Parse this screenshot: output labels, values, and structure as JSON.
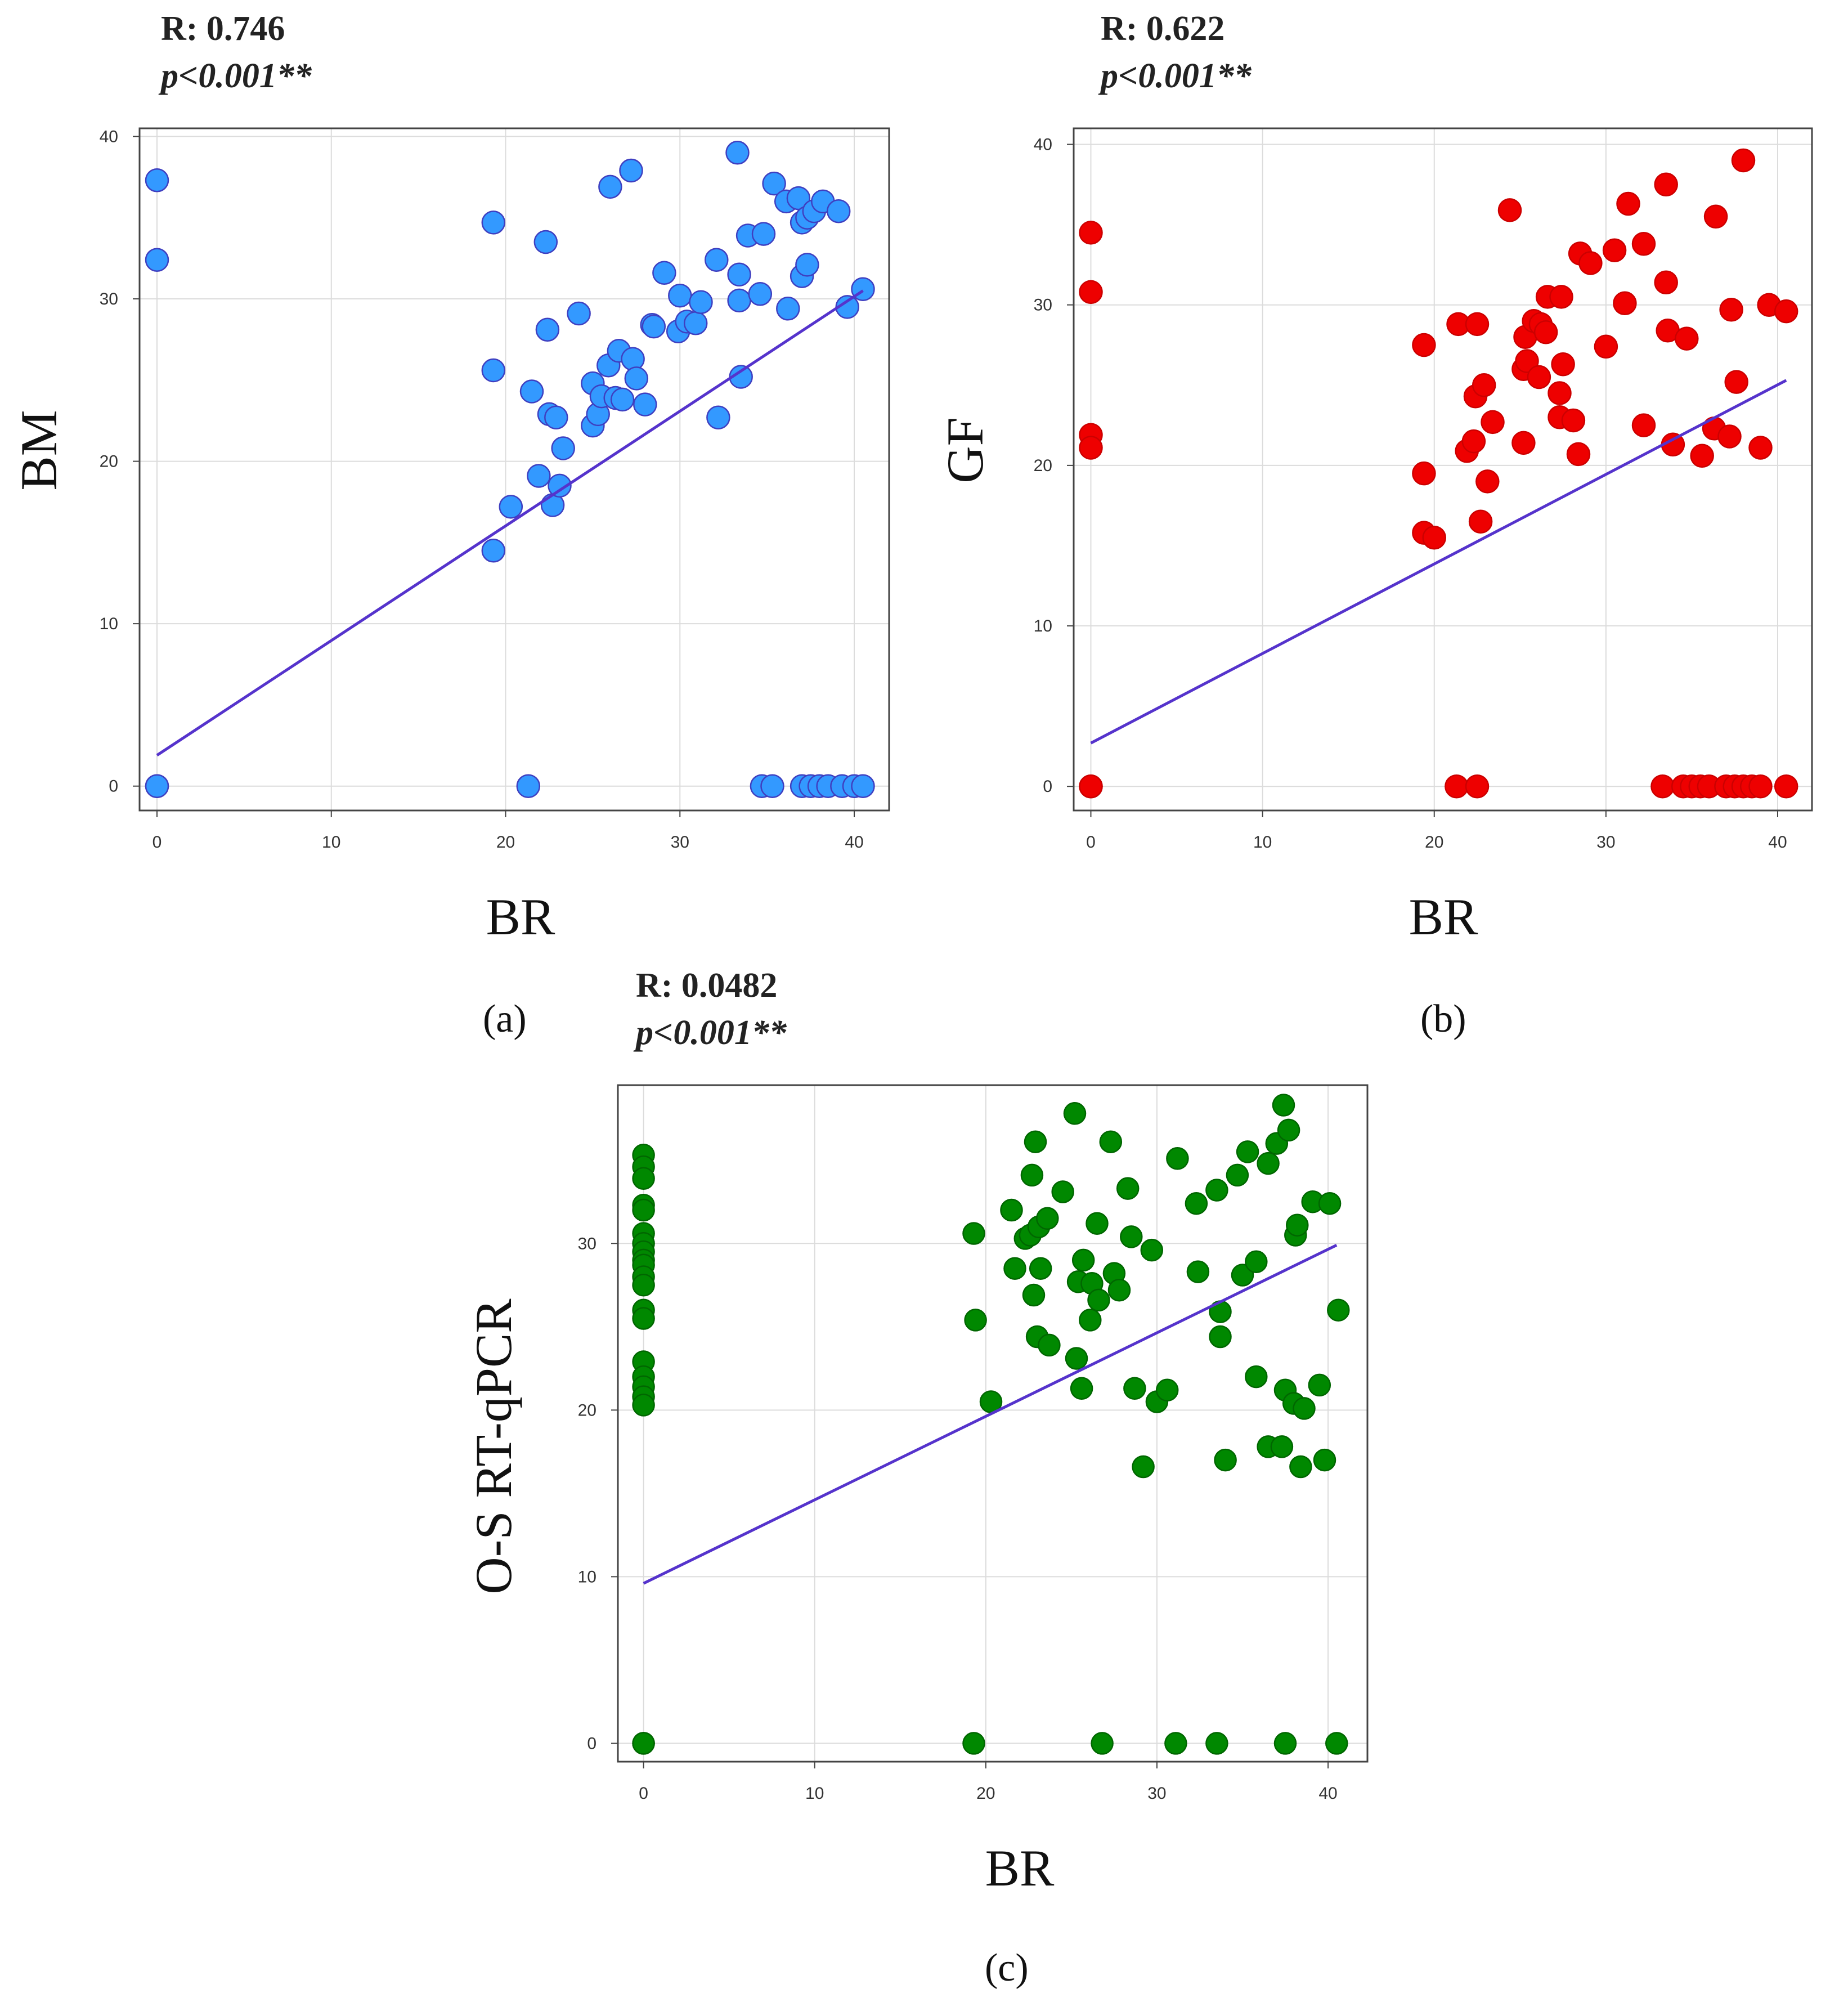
{
  "chart_data": [
    {
      "id": "a",
      "type": "scatter",
      "panel_label": "(a)",
      "stat_r": "R: 0.746",
      "stat_p": "p<0.001**",
      "xlabel": "BR",
      "ylabel": "BM",
      "xlim": [
        -1,
        42
      ],
      "ylim": [
        -1.5,
        40.5
      ],
      "xticks": [
        0,
        10,
        20,
        30,
        40
      ],
      "yticks": [
        0,
        10,
        20,
        30,
        40
      ],
      "grid": true,
      "marker_color": "#3399FF",
      "marker_edge": "#3F3FC0",
      "line_color": "#5533CC",
      "fit_line": {
        "x": [
          0,
          40.5
        ],
        "y": [
          1.9,
          30.5
        ]
      },
      "points": [
        [
          0,
          37.3
        ],
        [
          0,
          32.4
        ],
        [
          0,
          0
        ],
        [
          0,
          0
        ],
        [
          19.3,
          34.7
        ],
        [
          19.3,
          25.6
        ],
        [
          19.3,
          14.5
        ],
        [
          20.3,
          17.2
        ],
        [
          21.3,
          0
        ],
        [
          21.5,
          24.3
        ],
        [
          21.9,
          19.1
        ],
        [
          22.3,
          33.5
        ],
        [
          22.4,
          28.1
        ],
        [
          22.5,
          22.9
        ],
        [
          22.7,
          17.3
        ],
        [
          22.9,
          22.7
        ],
        [
          23.1,
          18.5
        ],
        [
          23.3,
          20.8
        ],
        [
          24.2,
          29.1
        ],
        [
          25.0,
          24.8
        ],
        [
          25.0,
          22.2
        ],
        [
          25.3,
          22.9
        ],
        [
          25.5,
          24.0
        ],
        [
          25.9,
          25.9
        ],
        [
          26.0,
          36.9
        ],
        [
          26.3,
          23.9
        ],
        [
          26.5,
          26.8
        ],
        [
          26.7,
          23.8
        ],
        [
          27.2,
          37.9
        ],
        [
          27.3,
          26.3
        ],
        [
          27.5,
          25.1
        ],
        [
          28.0,
          23.5
        ],
        [
          28.4,
          28.4
        ],
        [
          28.5,
          28.3
        ],
        [
          29.1,
          31.6
        ],
        [
          29.9,
          28.0
        ],
        [
          30.0,
          30.2
        ],
        [
          30.4,
          28.6
        ],
        [
          30.9,
          28.5
        ],
        [
          31.2,
          29.8
        ],
        [
          32.1,
          32.4
        ],
        [
          32.2,
          22.7
        ],
        [
          33.3,
          39.0
        ],
        [
          33.4,
          31.5
        ],
        [
          33.4,
          29.9
        ],
        [
          33.5,
          25.2
        ],
        [
          33.9,
          33.9
        ],
        [
          34.8,
          34.0
        ],
        [
          34.6,
          30.3
        ],
        [
          34.7,
          0
        ],
        [
          35.3,
          0
        ],
        [
          35.4,
          37.1
        ],
        [
          36.1,
          36.0
        ],
        [
          36.2,
          29.4
        ],
        [
          36.8,
          36.2
        ],
        [
          37.0,
          31.4
        ],
        [
          37.0,
          34.7
        ],
        [
          37.3,
          32.1
        ],
        [
          37.3,
          35.0
        ],
        [
          37.7,
          35.4
        ],
        [
          37.0,
          0
        ],
        [
          37.5,
          0
        ],
        [
          38.0,
          0
        ],
        [
          38.2,
          36.0
        ],
        [
          38.5,
          0
        ],
        [
          39.1,
          35.4
        ],
        [
          39.3,
          0
        ],
        [
          39.6,
          29.5
        ],
        [
          40.0,
          0
        ],
        [
          40.5,
          0
        ],
        [
          40.5,
          30.6
        ]
      ]
    },
    {
      "id": "b",
      "type": "scatter",
      "panel_label": "(b)",
      "stat_r": "R: 0.622",
      "stat_p": "p<0.001**",
      "xlabel": "BR",
      "ylabel": "GF",
      "xlim": [
        -1,
        42
      ],
      "ylim": [
        -1.5,
        41
      ],
      "xticks": [
        0,
        10,
        20,
        30,
        40
      ],
      "yticks": [
        0,
        10,
        20,
        30,
        40
      ],
      "grid": true,
      "marker_color": "#EE0000",
      "marker_edge": "#CC0000",
      "line_color": "#5533CC",
      "fit_line": {
        "x": [
          0,
          40.5
        ],
        "y": [
          2.7,
          25.3
        ]
      },
      "points": [
        [
          0,
          34.5
        ],
        [
          0,
          30.8
        ],
        [
          0,
          21.9
        ],
        [
          0,
          21.1
        ],
        [
          0,
          0
        ],
        [
          0,
          0
        ],
        [
          19.4,
          27.5
        ],
        [
          19.4,
          19.5
        ],
        [
          19.4,
          15.8
        ],
        [
          20.0,
          15.5
        ],
        [
          21.3,
          0
        ],
        [
          22.5,
          0
        ],
        [
          21.4,
          28.8
        ],
        [
          21.9,
          20.9
        ],
        [
          22.3,
          21.5
        ],
        [
          22.4,
          24.3
        ],
        [
          22.5,
          28.8
        ],
        [
          22.7,
          16.5
        ],
        [
          22.9,
          25.0
        ],
        [
          23.1,
          19.0
        ],
        [
          23.4,
          22.7
        ],
        [
          24.4,
          35.9
        ],
        [
          25.2,
          21.4
        ],
        [
          25.2,
          26.0
        ],
        [
          25.3,
          28.0
        ],
        [
          25.4,
          26.5
        ],
        [
          25.8,
          29.0
        ],
        [
          26.1,
          25.5
        ],
        [
          26.2,
          28.8
        ],
        [
          26.5,
          28.3
        ],
        [
          26.6,
          30.5
        ],
        [
          27.3,
          24.5
        ],
        [
          27.3,
          23.0
        ],
        [
          27.4,
          30.5
        ],
        [
          27.5,
          26.3
        ],
        [
          28.1,
          22.8
        ],
        [
          28.4,
          20.7
        ],
        [
          28.5,
          33.2
        ],
        [
          29.1,
          32.6
        ],
        [
          30.0,
          27.4
        ],
        [
          30.5,
          33.4
        ],
        [
          31.1,
          30.1
        ],
        [
          31.3,
          36.3
        ],
        [
          32.2,
          33.8
        ],
        [
          32.2,
          22.5
        ],
        [
          33.3,
          0
        ],
        [
          33.5,
          37.5
        ],
        [
          33.5,
          31.4
        ],
        [
          33.6,
          28.4
        ],
        [
          33.9,
          21.3
        ],
        [
          34.5,
          0
        ],
        [
          34.7,
          27.9
        ],
        [
          35.0,
          0
        ],
        [
          35.5,
          0
        ],
        [
          35.6,
          20.6
        ],
        [
          36.0,
          0
        ],
        [
          36.3,
          22.3
        ],
        [
          36.4,
          35.5
        ],
        [
          37.0,
          0
        ],
        [
          37.2,
          21.8
        ],
        [
          37.3,
          29.7
        ],
        [
          37.5,
          0
        ],
        [
          37.6,
          25.2
        ],
        [
          38.0,
          0
        ],
        [
          38.0,
          39.0
        ],
        [
          38.5,
          0
        ],
        [
          39.0,
          21.1
        ],
        [
          39.0,
          0
        ],
        [
          39.5,
          30.0
        ],
        [
          40.5,
          29.6
        ],
        [
          40.5,
          0
        ]
      ]
    },
    {
      "id": "c",
      "type": "scatter",
      "panel_label": "(c)",
      "stat_r": "R: 0.0482",
      "stat_p": "p<0.001**",
      "xlabel": "BR",
      "ylabel": "O-S RT-qPCR",
      "xlim": [
        -1.5,
        42.3
      ],
      "ylim": [
        -1.1,
        39.5
      ],
      "xticks": [
        0,
        10,
        20,
        30,
        40
      ],
      "yticks": [
        0,
        10,
        20,
        30
      ],
      "grid": true,
      "marker_color": "#008800",
      "marker_edge": "#006600",
      "line_color": "#5533CC",
      "fit_line": {
        "x": [
          0,
          40.5
        ],
        "y": [
          9.6,
          29.9
        ]
      },
      "points": [
        [
          0,
          35.3
        ],
        [
          0,
          34.6
        ],
        [
          0,
          33.9
        ],
        [
          0,
          32.3
        ],
        [
          0,
          32.0
        ],
        [
          0,
          30.6
        ],
        [
          0,
          30.0
        ],
        [
          0,
          29.5
        ],
        [
          0,
          29.0
        ],
        [
          0,
          28.7
        ],
        [
          0,
          28.0
        ],
        [
          0,
          27.5
        ],
        [
          0,
          26.0
        ],
        [
          0,
          25.5
        ],
        [
          0,
          22.9
        ],
        [
          0,
          22.0
        ],
        [
          0,
          21.4
        ],
        [
          0,
          20.8
        ],
        [
          0,
          20.3
        ],
        [
          0,
          0
        ],
        [
          0,
          0
        ],
        [
          19.3,
          30.6
        ],
        [
          19.4,
          25.4
        ],
        [
          19.3,
          0
        ],
        [
          20.3,
          20.5
        ],
        [
          21.5,
          32.0
        ],
        [
          21.7,
          28.5
        ],
        [
          22.3,
          30.3
        ],
        [
          22.6,
          30.5
        ],
        [
          22.7,
          34.1
        ],
        [
          22.8,
          26.9
        ],
        [
          22.9,
          36.1
        ],
        [
          23.0,
          24.4
        ],
        [
          23.1,
          31.0
        ],
        [
          23.2,
          28.5
        ],
        [
          23.6,
          31.5
        ],
        [
          23.7,
          23.9
        ],
        [
          24.5,
          33.1
        ],
        [
          25.2,
          37.8
        ],
        [
          25.3,
          23.1
        ],
        [
          25.4,
          27.7
        ],
        [
          25.6,
          21.3
        ],
        [
          25.7,
          29.0
        ],
        [
          26.1,
          25.4
        ],
        [
          26.2,
          27.6
        ],
        [
          26.5,
          31.2
        ],
        [
          26.6,
          26.6
        ],
        [
          26.8,
          0
        ],
        [
          27.3,
          36.1
        ],
        [
          27.5,
          28.2
        ],
        [
          27.8,
          27.2
        ],
        [
          28.3,
          33.3
        ],
        [
          28.5,
          30.4
        ],
        [
          28.7,
          21.3
        ],
        [
          29.2,
          16.6
        ],
        [
          29.7,
          29.6
        ],
        [
          30.0,
          20.5
        ],
        [
          30.6,
          21.2
        ],
        [
          31.2,
          35.1
        ],
        [
          31.1,
          0
        ],
        [
          32.3,
          32.4
        ],
        [
          32.4,
          28.3
        ],
        [
          33.5,
          0
        ],
        [
          33.5,
          33.2
        ],
        [
          33.7,
          25.9
        ],
        [
          33.7,
          24.4
        ],
        [
          34.0,
          17.0
        ],
        [
          34.7,
          34.1
        ],
        [
          35.0,
          28.1
        ],
        [
          35.3,
          35.5
        ],
        [
          35.8,
          28.9
        ],
        [
          35.8,
          22.0
        ],
        [
          36.5,
          34.8
        ],
        [
          36.5,
          17.8
        ],
        [
          37.0,
          36.0
        ],
        [
          37.3,
          17.8
        ],
        [
          37.4,
          38.3
        ],
        [
          37.5,
          21.2
        ],
        [
          37.5,
          0
        ],
        [
          37.7,
          36.8
        ],
        [
          38.0,
          20.4
        ],
        [
          38.1,
          30.5
        ],
        [
          38.2,
          31.1
        ],
        [
          38.4,
          16.6
        ],
        [
          38.6,
          20.1
        ],
        [
          39.1,
          32.5
        ],
        [
          39.5,
          21.5
        ],
        [
          39.8,
          17.0
        ],
        [
          40.1,
          32.4
        ],
        [
          40.6,
          26.0
        ],
        [
          40.5,
          0
        ]
      ]
    }
  ]
}
